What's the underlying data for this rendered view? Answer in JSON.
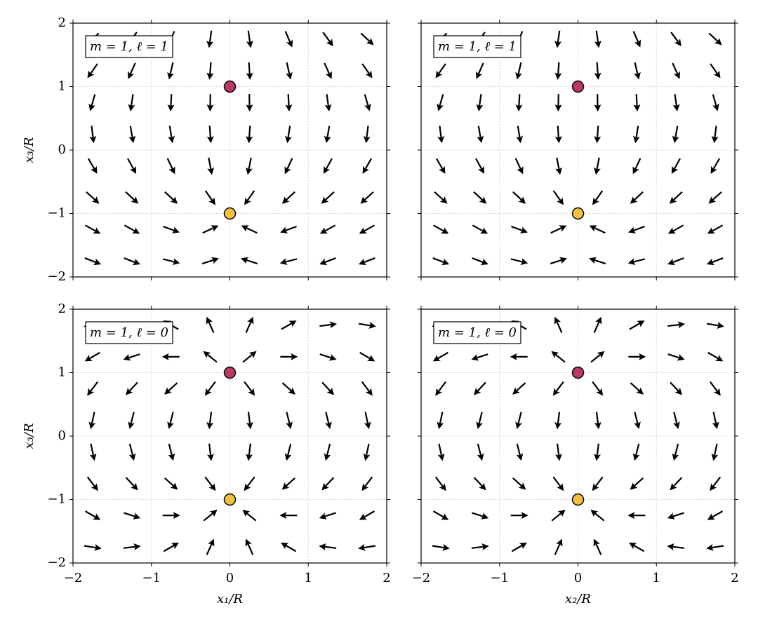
{
  "chart_data": [
    {
      "type": "quiver",
      "annotation": "m = 1, ℓ = 1",
      "ylabel": "x₃/R",
      "xlim": [
        -2,
        2
      ],
      "ylim": [
        -2,
        2
      ],
      "grid": true,
      "arrow_color": "#000000",
      "yticks": [
        {
          "value": -2,
          "label": "−2"
        },
        {
          "value": -1,
          "label": "−1"
        },
        0,
        1,
        2
      ],
      "x": [
        -1.75,
        -1.25,
        -0.75,
        -0.25,
        0.25,
        0.75,
        1.25,
        1.75
      ],
      "y": [
        -1.75,
        -1.25,
        -0.75,
        -0.25,
        0.25,
        0.75,
        1.25,
        1.75
      ],
      "angles": [
        [
          -21,
          -21,
          -14,
          18,
          162,
          -166,
          -159,
          -159
        ],
        [
          -29,
          -29,
          -20,
          25,
          155,
          -160,
          -151,
          -151
        ],
        [
          -42,
          -43,
          -43,
          -55,
          -125,
          -137,
          -137,
          -138
        ],
        [
          -60,
          -61,
          -65,
          -79,
          -101,
          -115,
          -119,
          -120
        ],
        [
          -83,
          -80,
          -81,
          -86,
          -94,
          -99,
          -100,
          -97
        ],
        [
          -106,
          -98,
          -93,
          -91,
          -89,
          -87,
          -82,
          -74
        ],
        [
          -125,
          -114,
          -103,
          -94,
          -86,
          -77,
          -66,
          -55
        ],
        [
          -137,
          -126,
          -113,
          -98,
          -82,
          -67,
          -54,
          -43
        ]
      ],
      "points": [
        {
          "x": 0,
          "y": 1,
          "color": "#b83a62"
        },
        {
          "x": 0,
          "y": -1,
          "color": "#f2c043"
        }
      ]
    },
    {
      "type": "quiver",
      "annotation": "m = 1, ℓ = 1",
      "xlim": [
        -2,
        2
      ],
      "ylim": [
        -2,
        2
      ],
      "grid": true,
      "arrow_color": "#000000",
      "x": [
        -1.75,
        -1.25,
        -0.75,
        -0.25,
        0.25,
        0.75,
        1.25,
        1.75
      ],
      "y": [
        -1.75,
        -1.25,
        -0.75,
        -0.25,
        0.25,
        0.75,
        1.25,
        1.75
      ],
      "angles": [
        [
          -21,
          -21,
          -14,
          18,
          162,
          -166,
          -159,
          -159
        ],
        [
          -29,
          -29,
          -20,
          25,
          155,
          -160,
          -151,
          -151
        ],
        [
          -42,
          -43,
          -43,
          -55,
          -125,
          -137,
          -137,
          -138
        ],
        [
          -60,
          -61,
          -65,
          -79,
          -101,
          -115,
          -119,
          -120
        ],
        [
          -83,
          -80,
          -81,
          -86,
          -94,
          -99,
          -100,
          -97
        ],
        [
          -106,
          -98,
          -93,
          -91,
          -89,
          -87,
          -82,
          -74
        ],
        [
          -125,
          -114,
          -103,
          -94,
          -86,
          -77,
          -66,
          -55
        ],
        [
          -137,
          -126,
          -113,
          -98,
          -82,
          -67,
          -54,
          -43
        ]
      ],
      "points": [
        {
          "x": 0,
          "y": 1,
          "color": "#b83a62"
        },
        {
          "x": 0,
          "y": -1,
          "color": "#f2c043"
        }
      ]
    },
    {
      "type": "quiver",
      "annotation": "m = 1, ℓ = 0",
      "ylabel": "x₃/R",
      "xlabel": "x₁/R",
      "xlim": [
        -2,
        2
      ],
      "ylim": [
        -2,
        2
      ],
      "grid": true,
      "arrow_color": "#000000",
      "xticks": [
        {
          "value": -2,
          "label": "−2"
        },
        {
          "value": -1,
          "label": "−1"
        },
        0,
        1,
        2
      ],
      "yticks": [
        {
          "value": -2,
          "label": "−2"
        },
        {
          "value": -1,
          "label": "−1"
        },
        0,
        1,
        2
      ],
      "x": [
        -1.75,
        -1.25,
        -0.75,
        -0.25,
        0.25,
        0.75,
        1.25,
        1.75
      ],
      "y": [
        -1.75,
        -1.25,
        -0.75,
        -0.25,
        0.25,
        0.75,
        1.25,
        1.75
      ],
      "angles": [
        [
          -9,
          7,
          30,
          66,
          114,
          150,
          173,
          -171
        ],
        [
          -30,
          -18,
          0,
          39,
          141,
          180,
          -162,
          -150
        ],
        [
          -53,
          -47,
          -42,
          -53,
          -127,
          -138,
          -133,
          -127
        ],
        [
          -78,
          -76,
          -76,
          -83,
          -97,
          -104,
          -104,
          -102
        ],
        [
          -102,
          -104,
          -104,
          -97,
          -83,
          -76,
          -76,
          -78
        ],
        [
          -127,
          -133,
          -138,
          -127,
          -53,
          -42,
          -47,
          -53
        ],
        [
          -150,
          -162,
          180,
          141,
          39,
          0,
          -18,
          -30
        ],
        [
          -171,
          173,
          150,
          114,
          66,
          30,
          7,
          -9
        ]
      ],
      "points": [
        {
          "x": 0,
          "y": 1,
          "color": "#b83a62"
        },
        {
          "x": 0,
          "y": -1,
          "color": "#f2c043"
        }
      ]
    },
    {
      "type": "quiver",
      "annotation": "m = 1, ℓ = 0",
      "xlabel": "x₂/R",
      "xlim": [
        -2,
        2
      ],
      "ylim": [
        -2,
        2
      ],
      "grid": true,
      "arrow_color": "#000000",
      "xticks": [
        {
          "value": -2,
          "label": "−2"
        },
        {
          "value": -1,
          "label": "−1"
        },
        0,
        1,
        2
      ],
      "x": [
        -1.75,
        -1.25,
        -0.75,
        -0.25,
        0.25,
        0.75,
        1.25,
        1.75
      ],
      "y": [
        -1.75,
        -1.25,
        -0.75,
        -0.25,
        0.25,
        0.75,
        1.25,
        1.75
      ],
      "angles": [
        [
          -9,
          7,
          30,
          66,
          114,
          150,
          173,
          -171
        ],
        [
          -30,
          -18,
          0,
          39,
          141,
          180,
          -162,
          -150
        ],
        [
          -53,
          -47,
          -42,
          -53,
          -127,
          -138,
          -133,
          -127
        ],
        [
          -78,
          -76,
          -76,
          -83,
          -97,
          -104,
          -104,
          -102
        ],
        [
          -102,
          -104,
          -104,
          -97,
          -83,
          -76,
          -76,
          -78
        ],
        [
          -127,
          -133,
          -138,
          -127,
          -53,
          -42,
          -47,
          -53
        ],
        [
          -150,
          -162,
          180,
          141,
          39,
          0,
          -18,
          -30
        ],
        [
          -171,
          173,
          150,
          114,
          66,
          30,
          7,
          -9
        ]
      ],
      "points": [
        {
          "x": 0,
          "y": 1,
          "color": "#b83a62"
        },
        {
          "x": 0,
          "y": -1,
          "color": "#f2c043"
        }
      ]
    }
  ]
}
